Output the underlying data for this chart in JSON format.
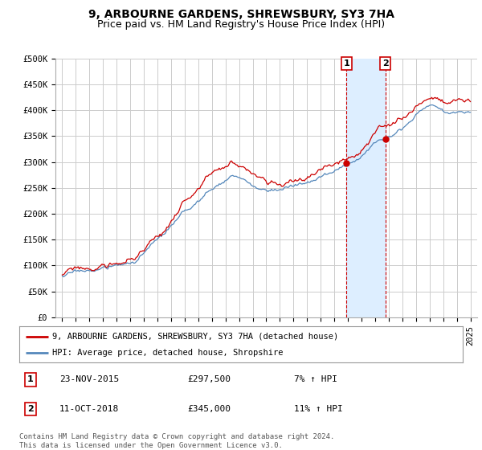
{
  "title": "9, ARBOURNE GARDENS, SHREWSBURY, SY3 7HA",
  "subtitle": "Price paid vs. HM Land Registry's House Price Index (HPI)",
  "ylim": [
    0,
    500000
  ],
  "yticks": [
    0,
    50000,
    100000,
    150000,
    200000,
    250000,
    300000,
    350000,
    400000,
    450000,
    500000
  ],
  "ytick_labels": [
    "£0",
    "£50K",
    "£100K",
    "£150K",
    "£200K",
    "£250K",
    "£300K",
    "£350K",
    "£400K",
    "£450K",
    "£500K"
  ],
  "background_color": "#ffffff",
  "grid_color": "#cccccc",
  "line1_color": "#cc0000",
  "line2_color": "#5588bb",
  "shade_color": "#ddeeff",
  "sale1_year": 2015.9,
  "sale1_price": 297500,
  "sale2_year": 2018.75,
  "sale2_price": 345000,
  "legend1": "9, ARBOURNE GARDENS, SHREWSBURY, SY3 7HA (detached house)",
  "legend2": "HPI: Average price, detached house, Shropshire",
  "annotation1_date": "23-NOV-2015",
  "annotation1_price": "£297,500",
  "annotation1_hpi": "7% ↑ HPI",
  "annotation2_date": "11-OCT-2018",
  "annotation2_price": "£345,000",
  "annotation2_hpi": "11% ↑ HPI",
  "footnote": "Contains HM Land Registry data © Crown copyright and database right 2024.\nThis data is licensed under the Open Government Licence v3.0.",
  "title_fontsize": 10,
  "subtitle_fontsize": 9,
  "tick_fontsize": 7.5,
  "xlim_left": 1994.5,
  "xlim_right": 2025.5
}
